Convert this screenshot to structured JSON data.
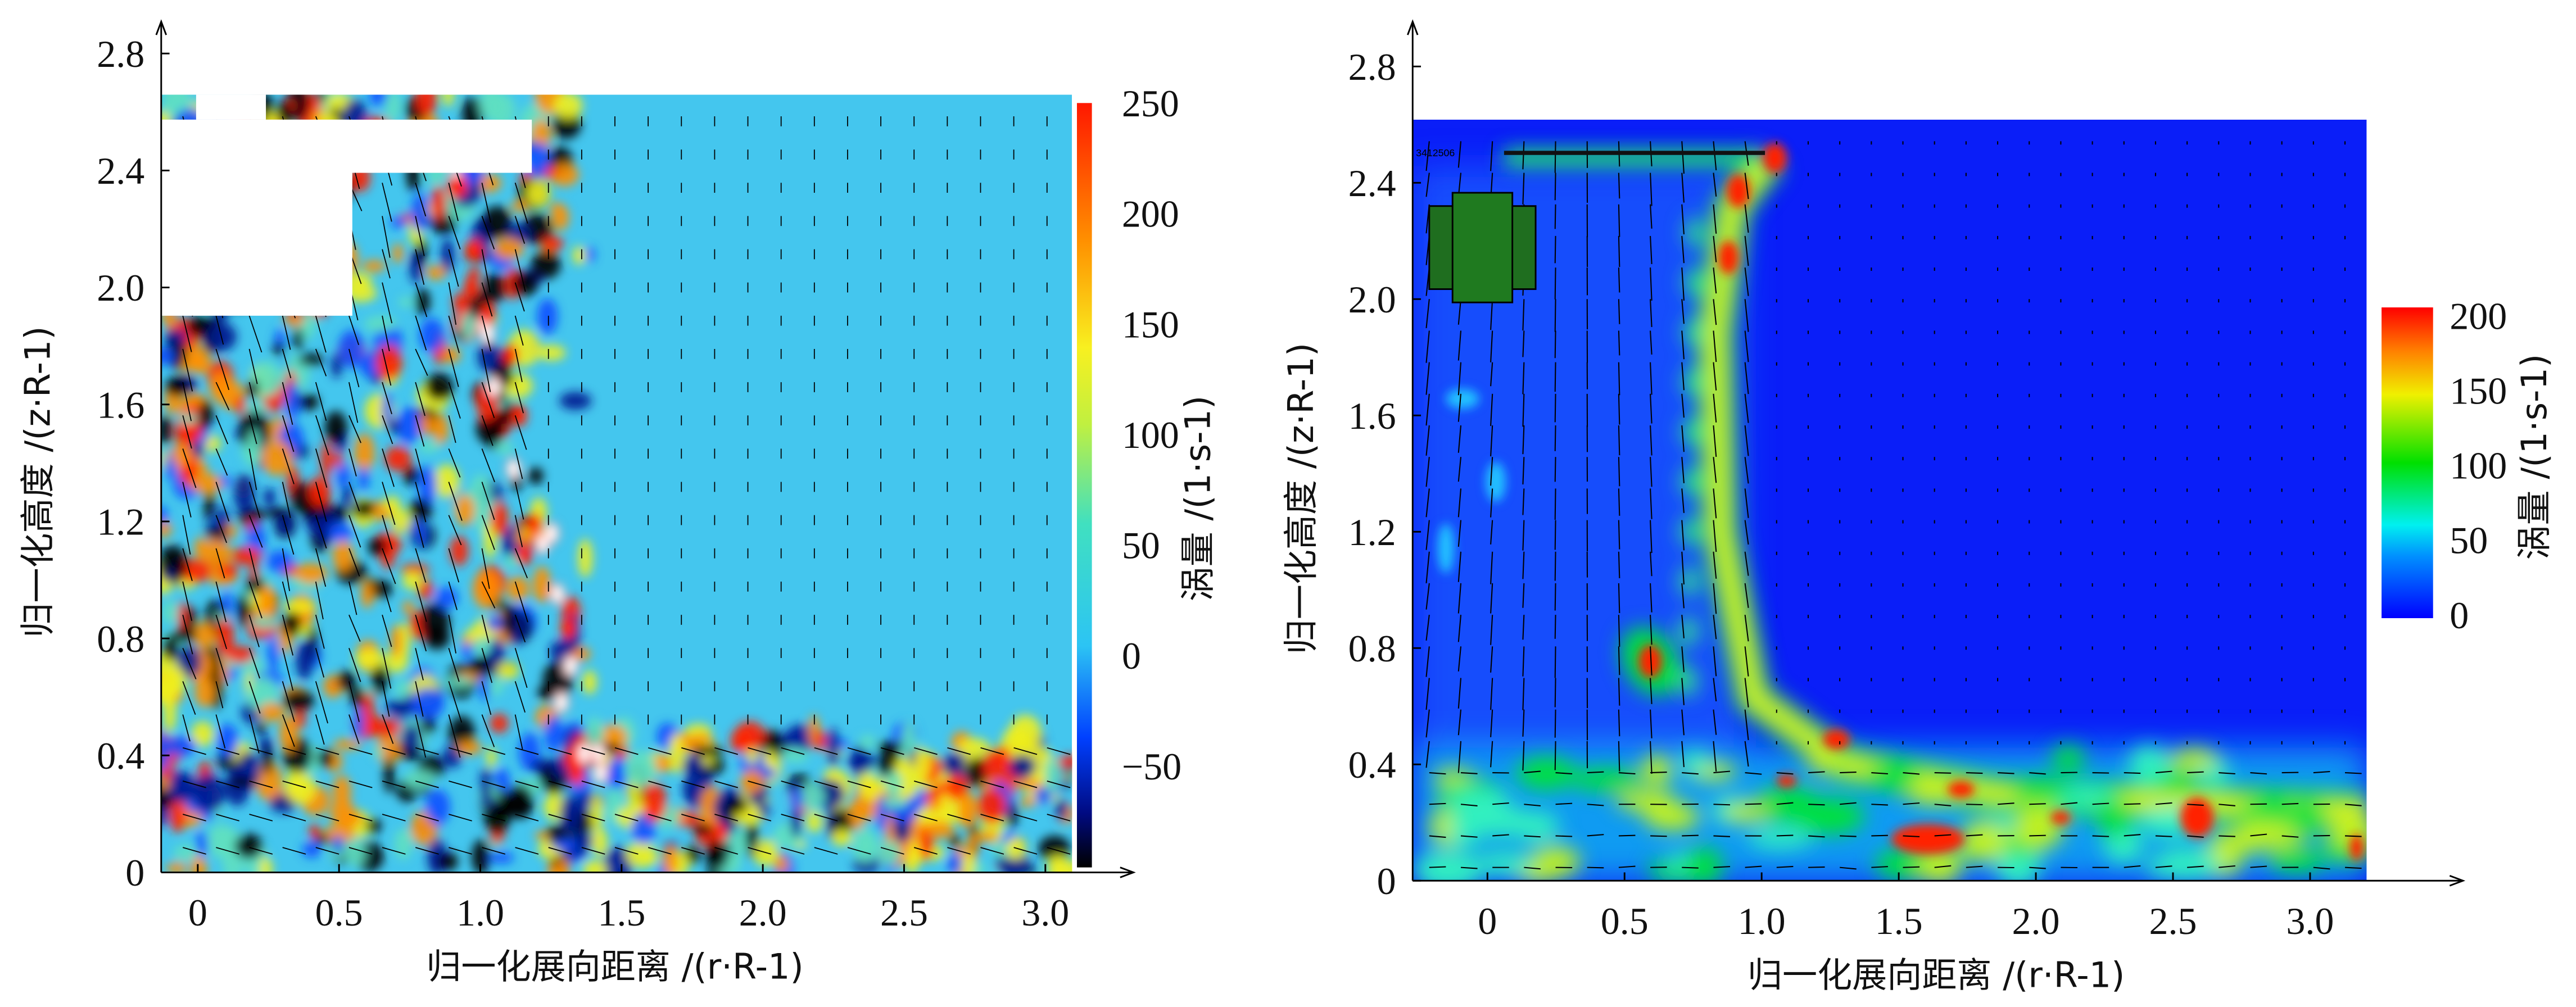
{
  "chart_data": [
    {
      "type": "heatmap",
      "title": "",
      "xlabel": "归一化展向距离 /(r·R-1)",
      "ylabel": "归一化高度 /(z·R-1)",
      "xlim": [
        -0.15,
        3.15
      ],
      "ylim": [
        0,
        2.9
      ],
      "xticks": [
        "0",
        "0.5",
        "1.0",
        "1.5",
        "2.0",
        "2.5",
        "3.0"
      ],
      "xtick_values": [
        0,
        0.5,
        1.0,
        1.5,
        2.0,
        2.5,
        3.0
      ],
      "yticks": [
        "0",
        "0.4",
        "0.8",
        "1.2",
        "1.6",
        "2.0",
        "2.4",
        "2.8"
      ],
      "ytick_values": [
        0,
        0.4,
        0.8,
        1.2,
        1.6,
        2.0,
        2.4,
        2.8
      ],
      "colorbar": {
        "label": "涡量 /(1·s-1)",
        "ticks": [
          "250",
          "200",
          "150",
          "100",
          "50",
          "0",
          "−50"
        ],
        "tick_values": [
          250,
          200,
          150,
          100,
          50,
          0,
          -50
        ],
        "range": [
          -100,
          250
        ],
        "colors": [
          "#000000",
          "#0010a0",
          "#1060ff",
          "#30c8f0",
          "#50e0b0",
          "#f0f020",
          "#ff8000",
          "#ff2000"
        ]
      }
    },
    {
      "type": "heatmap",
      "title": "",
      "xlabel": "归一化展向距离 /(r·R-1)",
      "ylabel": "归一化高度 /(z·R-1)",
      "xlim": [
        -0.25,
        3.1
      ],
      "ylim": [
        0,
        2.9
      ],
      "xticks": [
        "0",
        "0.5",
        "1.0",
        "1.5",
        "2.0",
        "2.5",
        "3.0"
      ],
      "xtick_values": [
        0,
        0.5,
        1.0,
        1.5,
        2.0,
        2.5,
        3.0
      ],
      "yticks": [
        "0",
        "0.4",
        "0.8",
        "1.2",
        "1.6",
        "2.0",
        "2.4",
        "2.8"
      ],
      "ytick_values": [
        0,
        0.4,
        0.8,
        1.2,
        1.6,
        2.0,
        2.4,
        2.8
      ],
      "colorbar": {
        "label": "涡量 /(1·s-1)",
        "ticks": [
          "200",
          "150",
          "100",
          "50",
          "0"
        ],
        "tick_values": [
          200,
          150,
          100,
          50,
          0
        ],
        "range": [
          0,
          200
        ],
        "colors": [
          "#0000ff",
          "#00a0ff",
          "#00f0f0",
          "#00e000",
          "#f0f000",
          "#ff8000",
          "#ff0000"
        ]
      },
      "annotation": "3412506"
    }
  ]
}
